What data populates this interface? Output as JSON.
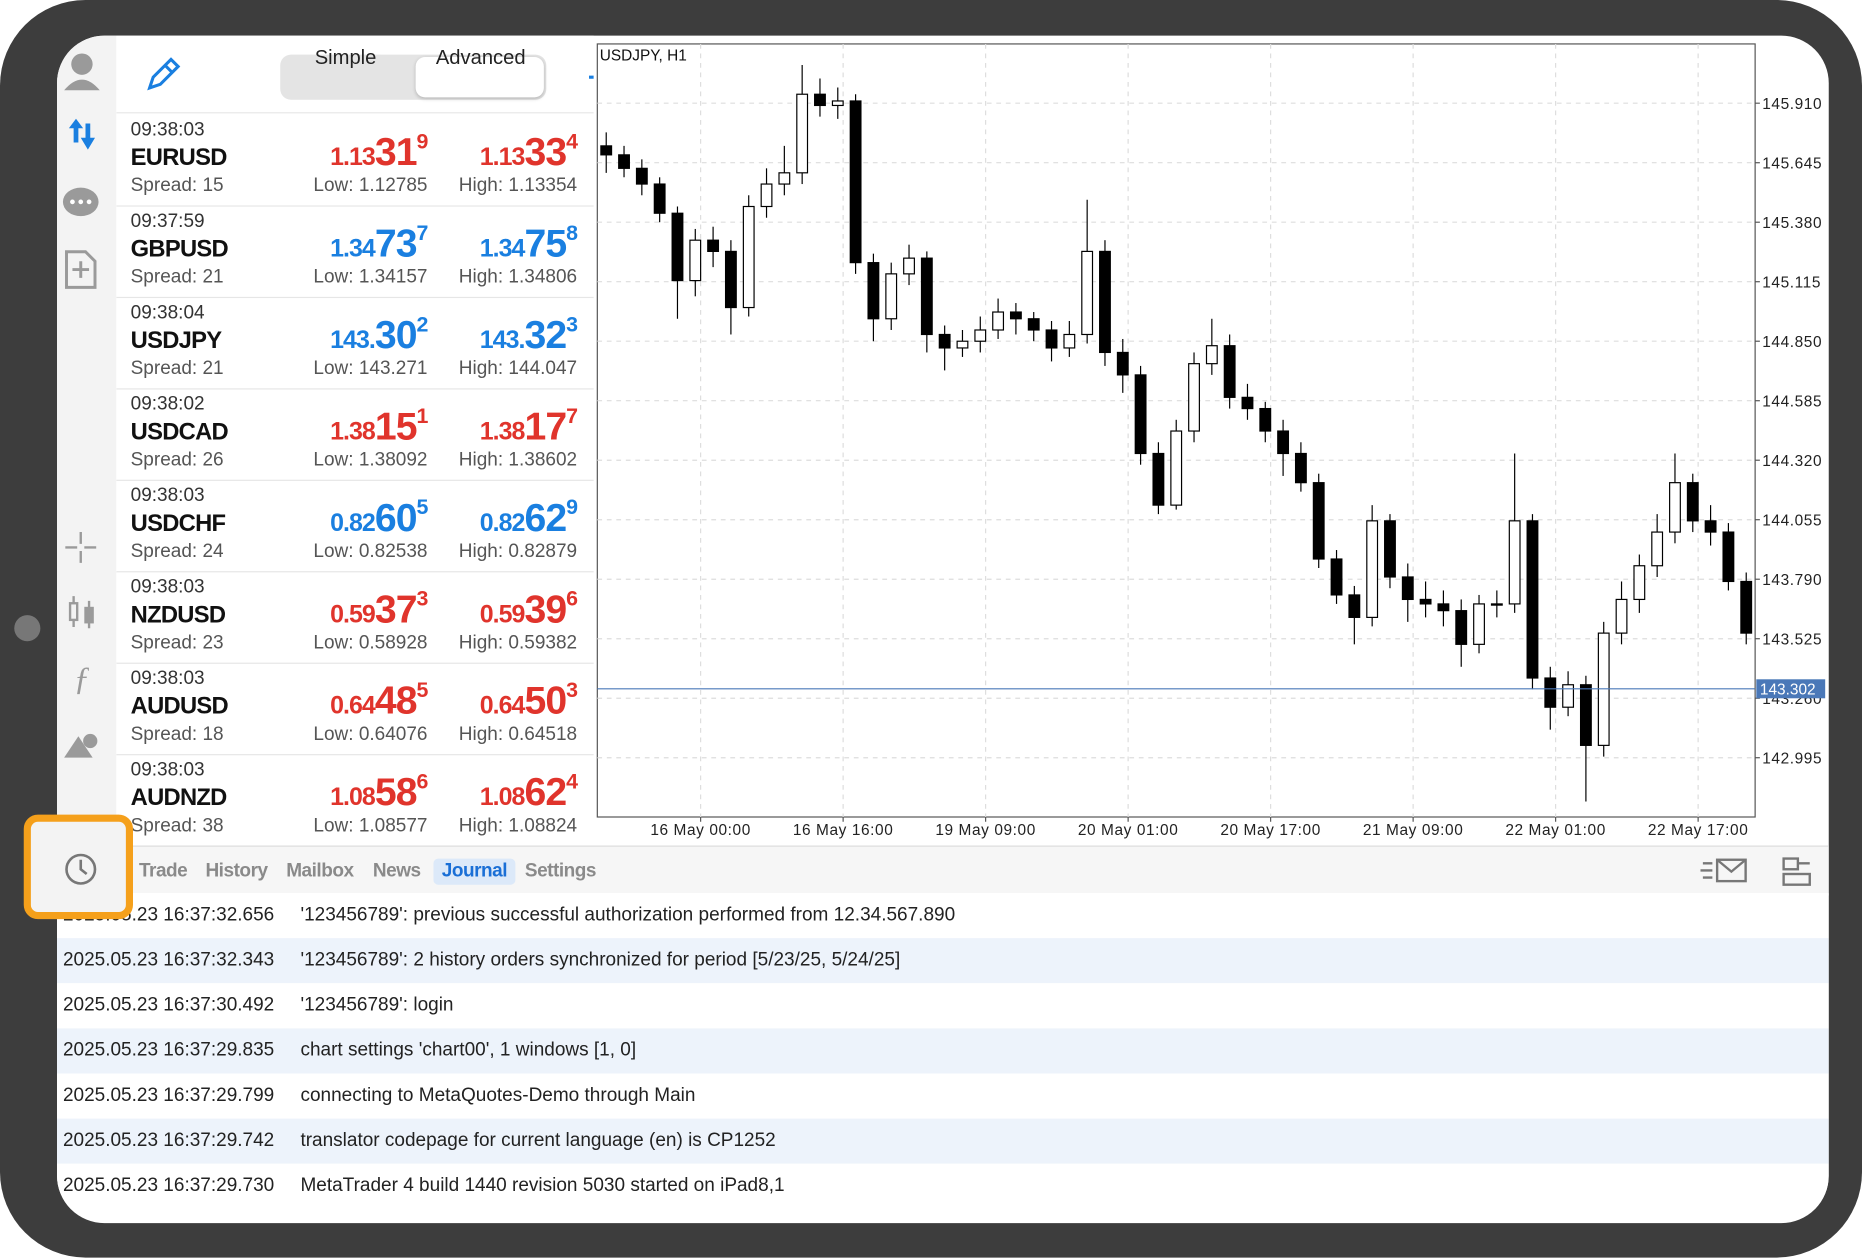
{
  "segments": [
    "Simple",
    "Advanced"
  ],
  "quotes": [
    {
      "time": "09:38:03",
      "symbol": "EURUSD",
      "spread": "Spread: 15",
      "bid": [
        "1.13",
        "31",
        "9"
      ],
      "ask": [
        "1.13",
        "33",
        "4"
      ],
      "low": "Low: 1.12785",
      "high": "High: 1.13354",
      "color": "#e0342c"
    },
    {
      "time": "09:37:59",
      "symbol": "GBPUSD",
      "spread": "Spread: 21",
      "bid": [
        "1.34",
        "73",
        "7"
      ],
      "ask": [
        "1.34",
        "75",
        "8"
      ],
      "low": "Low: 1.34157",
      "high": "High: 1.34806",
      "color": "#1a7fe0"
    },
    {
      "time": "09:38:04",
      "symbol": "USDJPY",
      "spread": "Spread: 21",
      "bid": [
        "143.",
        "30",
        "2"
      ],
      "ask": [
        "143.",
        "32",
        "3"
      ],
      "low": "Low: 143.271",
      "high": "High: 144.047",
      "color": "#1a7fe0"
    },
    {
      "time": "09:38:02",
      "symbol": "USDCAD",
      "spread": "Spread: 26",
      "bid": [
        "1.38",
        "15",
        "1"
      ],
      "ask": [
        "1.38",
        "17",
        "7"
      ],
      "low": "Low: 1.38092",
      "high": "High: 1.38602",
      "color": "#e0342c"
    },
    {
      "time": "09:38:03",
      "symbol": "USDCHF",
      "spread": "Spread: 24",
      "bid": [
        "0.82",
        "60",
        "5"
      ],
      "ask": [
        "0.82",
        "62",
        "9"
      ],
      "low": "Low: 0.82538",
      "high": "High: 0.82879",
      "color": "#1a7fe0"
    },
    {
      "time": "09:38:03",
      "symbol": "NZDUSD",
      "spread": "Spread: 23",
      "bid": [
        "0.59",
        "37",
        "3"
      ],
      "ask": [
        "0.59",
        "39",
        "6"
      ],
      "low": "Low: 0.58928",
      "high": "High: 0.59382",
      "color": "#e0342c"
    },
    {
      "time": "09:38:03",
      "symbol": "AUDUSD",
      "spread": "Spread: 18",
      "bid": [
        "0.64",
        "48",
        "5"
      ],
      "ask": [
        "0.64",
        "50",
        "3"
      ],
      "low": "Low: 0.64076",
      "high": "High: 0.64518",
      "color": "#e0342c"
    },
    {
      "time": "09:38:03",
      "symbol": "AUDNZD",
      "spread": "Spread: 38",
      "bid": [
        "1.08",
        "58",
        "6"
      ],
      "ask": [
        "1.08",
        "62",
        "4"
      ],
      "low": "Low: 1.08577",
      "high": "High: 1.08824",
      "color": "#e0342c"
    }
  ],
  "chart_data": {
    "type": "candlestick",
    "title": "USDJPY, H1",
    "x_labels": [
      "16 May 00:00",
      "16 May 16:00",
      "19 May 09:00",
      "20 May 01:00",
      "20 May 17:00",
      "21 May 09:00",
      "22 May 01:00",
      "22 May 17:00"
    ],
    "candles": [
      [
        145.72,
        145.78,
        145.6,
        145.68
      ],
      [
        145.68,
        145.72,
        145.58,
        145.62
      ],
      [
        145.62,
        145.66,
        145.5,
        145.55
      ],
      [
        145.55,
        145.58,
        145.38,
        145.42
      ],
      [
        145.42,
        145.45,
        144.95,
        145.12
      ],
      [
        145.12,
        145.35,
        145.05,
        145.3
      ],
      [
        145.3,
        145.36,
        145.18,
        145.25
      ],
      [
        145.25,
        145.3,
        144.88,
        145.0
      ],
      [
        145.0,
        145.5,
        144.96,
        145.45
      ],
      [
        145.45,
        145.62,
        145.4,
        145.55
      ],
      [
        145.55,
        145.72,
        145.5,
        145.6
      ],
      [
        145.6,
        146.08,
        145.55,
        145.95
      ],
      [
        145.95,
        146.02,
        145.85,
        145.9
      ],
      [
        145.9,
        145.98,
        145.84,
        145.92
      ],
      [
        145.92,
        145.95,
        145.15,
        145.2
      ],
      [
        145.2,
        145.24,
        144.85,
        144.95
      ],
      [
        144.95,
        145.2,
        144.9,
        145.15
      ],
      [
        145.15,
        145.28,
        145.1,
        145.22
      ],
      [
        145.22,
        145.25,
        144.8,
        144.88
      ],
      [
        144.88,
        144.92,
        144.72,
        144.82
      ],
      [
        144.82,
        144.9,
        144.78,
        144.85
      ],
      [
        144.85,
        144.96,
        144.8,
        144.9
      ],
      [
        144.9,
        145.04,
        144.86,
        144.98
      ],
      [
        144.98,
        145.02,
        144.88,
        144.95
      ],
      [
        144.95,
        144.98,
        144.85,
        144.9
      ],
      [
        144.9,
        144.94,
        144.76,
        144.82
      ],
      [
        144.82,
        144.94,
        144.78,
        144.88
      ],
      [
        144.88,
        145.48,
        144.84,
        145.25
      ],
      [
        145.25,
        145.3,
        144.74,
        144.8
      ],
      [
        144.8,
        144.86,
        144.62,
        144.7
      ],
      [
        144.7,
        144.74,
        144.3,
        144.35
      ],
      [
        144.35,
        144.4,
        144.08,
        144.12
      ],
      [
        144.12,
        144.5,
        144.1,
        144.45
      ],
      [
        144.45,
        144.8,
        144.4,
        144.75
      ],
      [
        144.75,
        144.95,
        144.7,
        144.83
      ],
      [
        144.83,
        144.88,
        144.55,
        144.6
      ],
      [
        144.6,
        144.66,
        144.5,
        144.55
      ],
      [
        144.55,
        144.58,
        144.4,
        144.45
      ],
      [
        144.45,
        144.5,
        144.25,
        144.35
      ],
      [
        144.35,
        144.4,
        144.18,
        144.22
      ],
      [
        144.22,
        144.26,
        143.84,
        143.88
      ],
      [
        143.88,
        143.92,
        143.68,
        143.72
      ],
      [
        143.72,
        143.76,
        143.5,
        143.62
      ],
      [
        143.62,
        144.12,
        143.58,
        144.05
      ],
      [
        144.05,
        144.08,
        143.75,
        143.8
      ],
      [
        143.8,
        143.86,
        143.6,
        143.7
      ],
      [
        143.7,
        143.78,
        143.62,
        143.68
      ],
      [
        143.68,
        143.74,
        143.58,
        143.65
      ],
      [
        143.65,
        143.7,
        143.4,
        143.5
      ],
      [
        143.5,
        143.72,
        143.46,
        143.68
      ],
      [
        143.68,
        143.74,
        143.62,
        143.68
      ],
      [
        143.68,
        144.35,
        143.64,
        144.05
      ],
      [
        144.05,
        144.08,
        143.3,
        143.35
      ],
      [
        143.35,
        143.4,
        143.12,
        143.22
      ],
      [
        143.22,
        143.38,
        143.18,
        143.32
      ],
      [
        143.32,
        143.36,
        142.8,
        143.05
      ],
      [
        143.05,
        143.6,
        143.0,
        143.55
      ],
      [
        143.55,
        143.78,
        143.5,
        143.7
      ],
      [
        143.7,
        143.9,
        143.64,
        143.85
      ],
      [
        143.85,
        144.08,
        143.8,
        144.0
      ],
      [
        144.0,
        144.35,
        143.95,
        144.22
      ],
      [
        144.22,
        144.26,
        144.0,
        144.05
      ],
      [
        144.05,
        144.12,
        143.94,
        144.0
      ],
      [
        144.0,
        144.04,
        143.74,
        143.78
      ],
      [
        143.78,
        143.82,
        143.5,
        143.55
      ]
    ],
    "ylim": [
      142.731,
      146.174
    ],
    "yticks": [
      {
        "value": 145.91,
        "label": "145.910"
      },
      145.645,
      {
        "value": 145.38,
        "label": "145.380"
      },
      145.115,
      {
        "value": 144.85,
        "label": "144.850"
      },
      144.585,
      {
        "value": 144.32,
        "label": "144.320"
      },
      144.055,
      {
        "value": 143.79,
        "label": "143.790"
      },
      143.525,
      {
        "value": 143.26,
        "label": "143.260"
      },
      142.995
    ],
    "grid": true,
    "current_price": 143.302,
    "colors": {
      "up": "#ffffff",
      "down": "#000000",
      "outline": "#000000",
      "price_line": "#4a78b8"
    }
  },
  "tabs": [
    "Trade",
    "History",
    "Mailbox",
    "News",
    "Journal",
    "Settings"
  ],
  "active_tab": 4,
  "journal": [
    [
      "2025.05.23 16:37:32.656",
      "'123456789': previous successful authorization performed from 12.34.567.890"
    ],
    [
      "2025.05.23 16:37:32.343",
      "'123456789': 2 history orders synchronized for period [5/23/25, 5/24/25]"
    ],
    [
      "2025.05.23 16:37:30.492",
      "'123456789': login"
    ],
    [
      "2025.05.23 16:37:29.835",
      "chart settings 'chart00', 1 windows [1, 0]"
    ],
    [
      "2025.05.23 16:37:29.799",
      "connecting to MetaQuotes-Demo through Main"
    ],
    [
      "2025.05.23 16:37:29.742",
      "translator codepage for current language (en) is CP1252"
    ],
    [
      "2025.05.23 16:37:29.730",
      "MetaTrader 4 build 1440 revision 5030 started on iPad8,1"
    ]
  ]
}
